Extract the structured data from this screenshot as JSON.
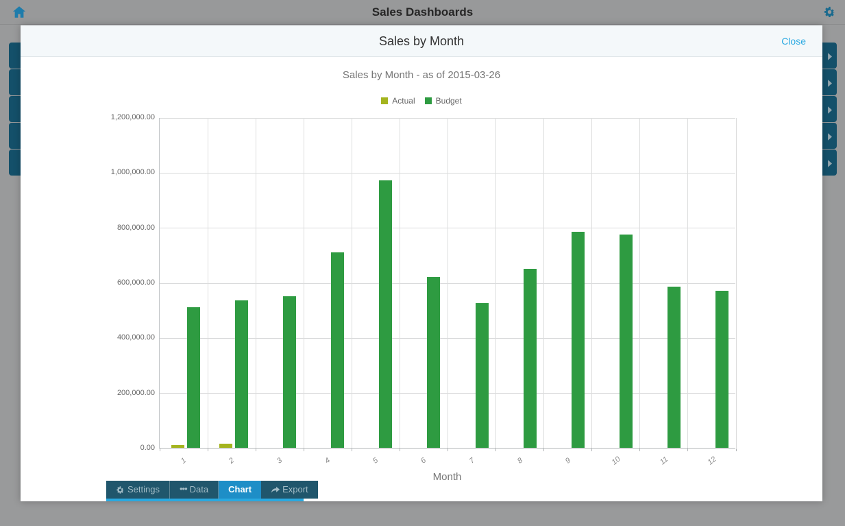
{
  "topbar": {
    "title": "Sales Dashboards"
  },
  "modal": {
    "title": "Sales by Month",
    "close_label": "Close"
  },
  "chart_data": {
    "type": "bar",
    "title": "Sales by Month - as of 2015-03-26",
    "categories": [
      "1",
      "2",
      "3",
      "4",
      "5",
      "6",
      "7",
      "8",
      "9",
      "10",
      "11",
      "12"
    ],
    "series": [
      {
        "name": "Actual",
        "color": "#a4b41e",
        "values": [
          10000,
          15000,
          0,
          0,
          0,
          0,
          0,
          0,
          0,
          0,
          0,
          0
        ]
      },
      {
        "name": "Budget",
        "color": "#2e9b41",
        "values": [
          510000,
          535000,
          550000,
          710000,
          970000,
          620000,
          525000,
          650000,
          785000,
          775000,
          585000,
          570000
        ]
      }
    ],
    "xlabel": "Month",
    "ylabel": "",
    "ylim": [
      0,
      1200000
    ],
    "ytick_labels": [
      "0.00",
      "200,000.00",
      "400,000.00",
      "600,000.00",
      "800,000.00",
      "1,000,000.00",
      "1,200,000.00"
    ],
    "legend_position": "top",
    "grid": true
  },
  "tabs": [
    {
      "label": "Settings",
      "icon": "gear-icon",
      "active": false
    },
    {
      "label": "Data",
      "icon": "ellipsis-icon",
      "active": false
    },
    {
      "label": "Chart",
      "icon": "",
      "active": true
    },
    {
      "label": "Export",
      "icon": "share-icon",
      "active": false
    }
  ],
  "colors": {
    "accent_blue": "#29a9e0",
    "tab_bg": "#20566c",
    "tab_active_bg": "#1e8ec7",
    "tile_bg": "#14506a",
    "actual": "#a4b41e",
    "budget": "#2e9b41"
  }
}
